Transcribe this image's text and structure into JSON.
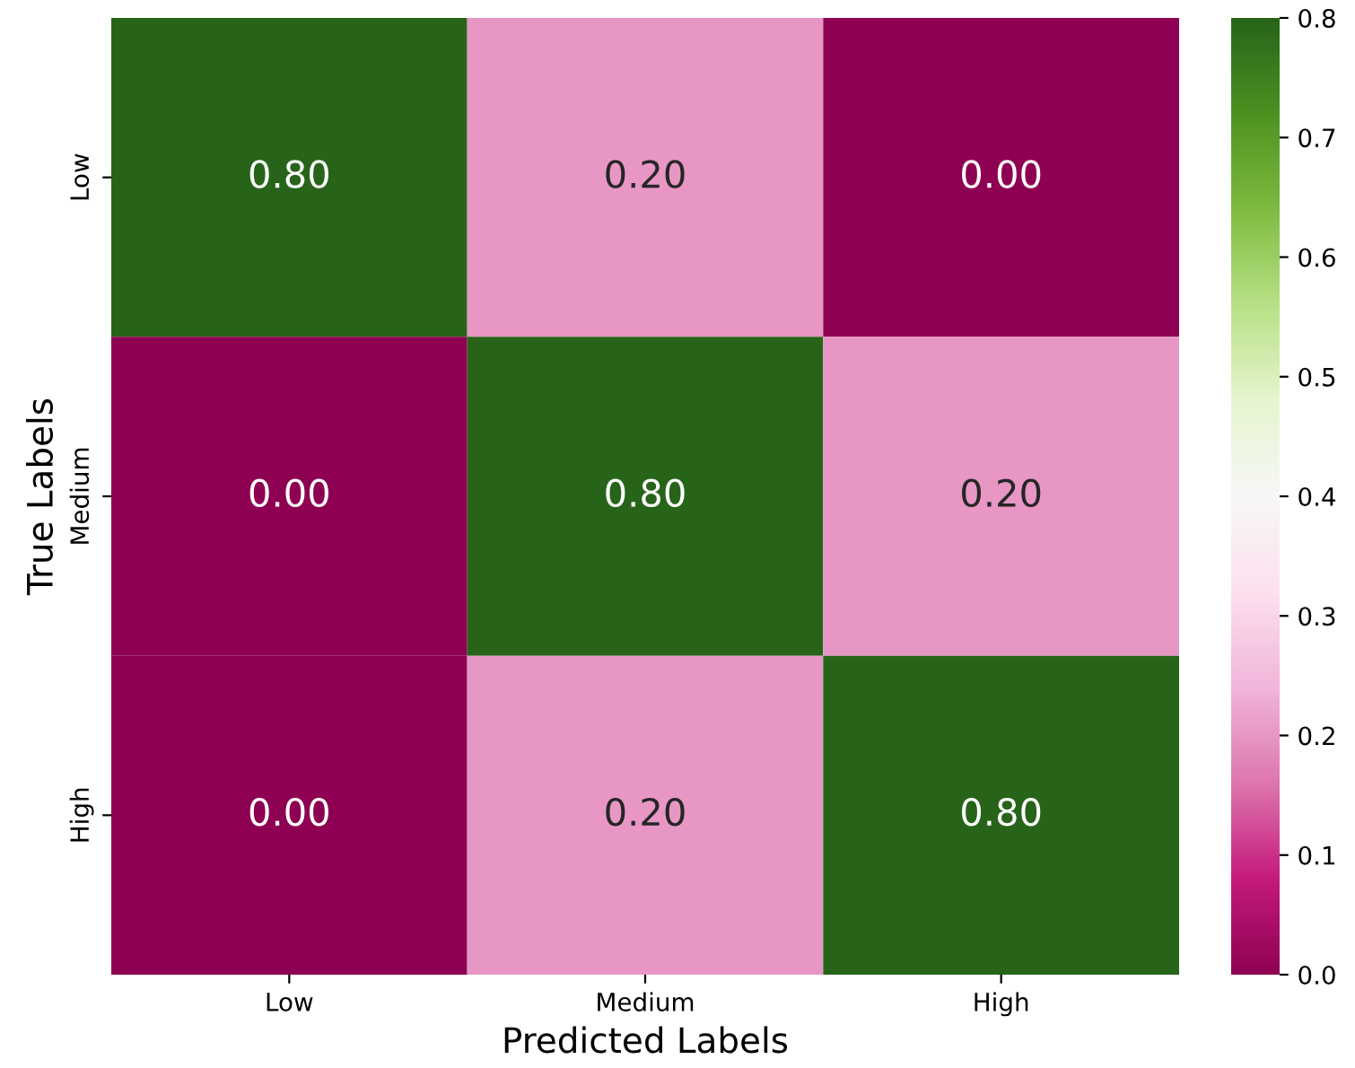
{
  "chart_data": {
    "type": "heatmap",
    "xlabel": "Predicted Labels",
    "ylabel": "True Labels",
    "categories": [
      "Low",
      "Medium",
      "High"
    ],
    "y_categories": [
      "Low",
      "Medium",
      "High"
    ],
    "cells": [
      [
        0.8,
        0.2,
        0.0
      ],
      [
        0.0,
        0.8,
        0.2
      ],
      [
        0.0,
        0.2,
        0.8
      ]
    ],
    "cell_labels": [
      [
        "0.80",
        "0.20",
        "0.00"
      ],
      [
        "0.00",
        "0.80",
        "0.20"
      ],
      [
        "0.00",
        "0.20",
        "0.80"
      ]
    ],
    "clim": [
      0.0,
      0.8
    ],
    "cticks": [
      {
        "value": 0,
        "label": "0.0"
      },
      0.1,
      0.2,
      0.3,
      0.4,
      0.5,
      0.6,
      0.7,
      0.8
    ]
  }
}
